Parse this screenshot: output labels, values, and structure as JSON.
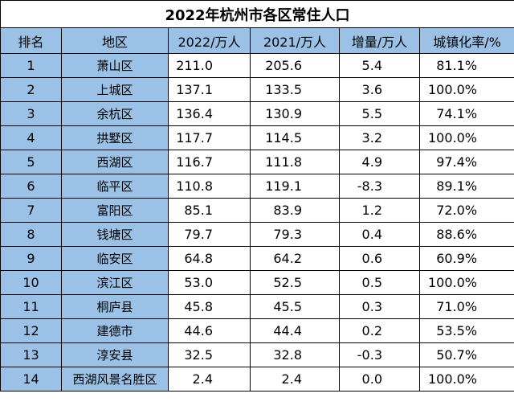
{
  "title": "2022年杭州市各区常住人口",
  "columns": [
    "排名",
    "地区",
    "2022/万人",
    "2021/万人",
    "增量/万人",
    "城镇化率/%"
  ],
  "rows": [
    {
      "rank": "1",
      "region": "萧山区",
      "pop2022": "211.0",
      "pop2021": "205.6",
      "increase": "5.4",
      "urbanization": "81.1%"
    },
    {
      "rank": "2",
      "region": "上城区",
      "pop2022": "137.1",
      "pop2021": "133.5",
      "increase": "3.6",
      "urbanization": "100.0%"
    },
    {
      "rank": "3",
      "region": "余杭区",
      "pop2022": "136.4",
      "pop2021": "130.9",
      "increase": "5.5",
      "urbanization": "74.1%"
    },
    {
      "rank": "4",
      "region": "拱墅区",
      "pop2022": "117.7",
      "pop2021": "114.5",
      "increase": "3.2",
      "urbanization": "100.0%"
    },
    {
      "rank": "5",
      "region": "西湖区",
      "pop2022": "116.7",
      "pop2021": "111.8",
      "increase": "4.9",
      "urbanization": "97.4%"
    },
    {
      "rank": "6",
      "region": "临平区",
      "pop2022": "110.8",
      "pop2021": "119.1",
      "increase": "-8.3",
      "urbanization": "89.1%"
    },
    {
      "rank": "7",
      "region": "富阳区",
      "pop2022": "85.1",
      "pop2021": "83.9",
      "increase": "1.2",
      "urbanization": "72.0%"
    },
    {
      "rank": "8",
      "region": "钱塘区",
      "pop2022": "79.7",
      "pop2021": "79.3",
      "increase": "0.4",
      "urbanization": "88.6%"
    },
    {
      "rank": "9",
      "region": "临安区",
      "pop2022": "64.8",
      "pop2021": "64.2",
      "increase": "0.6",
      "urbanization": "60.9%"
    },
    {
      "rank": "10",
      "region": "滨江区",
      "pop2022": "53.0",
      "pop2021": "52.5",
      "increase": "0.5",
      "urbanization": "100.0%"
    },
    {
      "rank": "11",
      "region": "桐庐县",
      "pop2022": "45.8",
      "pop2021": "45.5",
      "increase": "0.3",
      "urbanization": "71.0%"
    },
    {
      "rank": "12",
      "region": "建德市",
      "pop2022": "44.6",
      "pop2021": "44.4",
      "increase": "0.2",
      "urbanization": "53.5%"
    },
    {
      "rank": "13",
      "region": "淳安县",
      "pop2022": "32.5",
      "pop2021": "32.8",
      "increase": "-0.3",
      "urbanization": "50.7%"
    },
    {
      "rank": "14",
      "region": "西湖风景名胜区",
      "pop2022": "2.4",
      "pop2021": "2.4",
      "increase": "0.0",
      "urbanization": "100.0%"
    }
  ],
  "colors": {
    "header_fill": "#9bc2e6",
    "border": "#000000"
  }
}
